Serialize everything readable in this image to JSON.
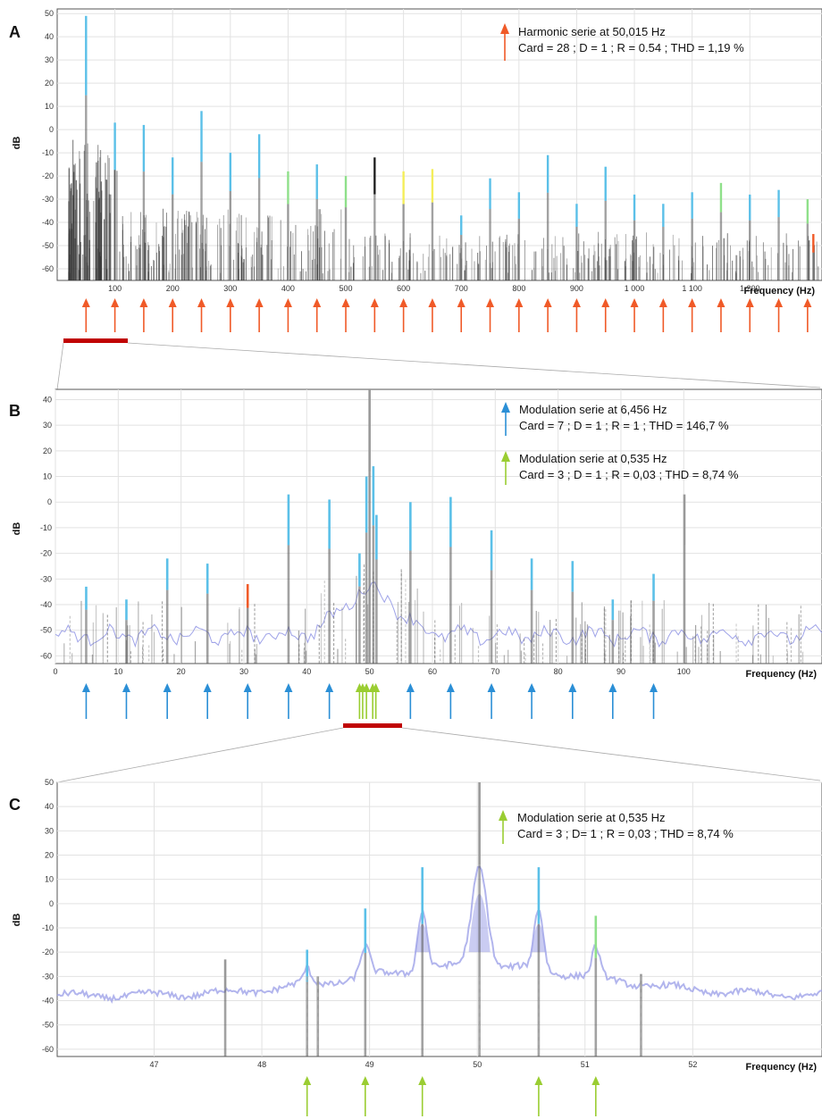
{
  "colors": {
    "harmonic": "#f05a28",
    "modulation_6456": "#2b8fd6",
    "modulation_0535": "#9acd32",
    "peak_blue": "#5bc0e8",
    "peak_green": "#8fe08a",
    "peak_yellow": "#f4ee5a",
    "spectrum": "#9fa3e8",
    "noise": "#333333",
    "zoom_bar": "#c00000"
  },
  "chart_data": [
    {
      "panel": "A",
      "type": "bar",
      "xlabel": "Frequency (Hz)",
      "ylabel": "dB",
      "xlim": [
        0,
        1325
      ],
      "ylim": [
        -65,
        52
      ],
      "xticks": [
        100,
        200,
        300,
        400,
        500,
        600,
        700,
        800,
        900,
        1000,
        1100,
        1200
      ],
      "xtick_labels": [
        "100",
        "200",
        "300",
        "400",
        "500",
        "600",
        "700",
        "800",
        "900",
        "1 000",
        "1 100",
        "1 200"
      ],
      "yticks": [
        -60,
        -50,
        -40,
        -30,
        -20,
        -10,
        0,
        10,
        20,
        30,
        40,
        50
      ],
      "grid": true,
      "legend": [
        {
          "title": "Harmonic serie at 50,015 Hz",
          "stats": "Card = 28 ;  D = 1 ;  R = 0.54 ;  THD = 1,19 %",
          "arrow_color": "#f05a28"
        }
      ],
      "peaks": [
        {
          "x": 50,
          "top": 49,
          "color": "blue"
        },
        {
          "x": 100,
          "top": 3,
          "color": "blue"
        },
        {
          "x": 150,
          "top": 2,
          "color": "blue"
        },
        {
          "x": 200,
          "top": -12,
          "color": "blue"
        },
        {
          "x": 250,
          "top": 8,
          "color": "blue"
        },
        {
          "x": 300,
          "top": -10,
          "color": "blue"
        },
        {
          "x": 350,
          "top": -2,
          "color": "blue"
        },
        {
          "x": 400,
          "top": -18,
          "color": "green"
        },
        {
          "x": 450,
          "top": -15,
          "color": "blue"
        },
        {
          "x": 500,
          "top": -20,
          "color": "green"
        },
        {
          "x": 550,
          "top": -12,
          "color": "dark"
        },
        {
          "x": 600,
          "top": -18,
          "color": "yellow"
        },
        {
          "x": 650,
          "top": -17,
          "color": "yellow"
        },
        {
          "x": 700,
          "top": -37,
          "color": "blue"
        },
        {
          "x": 750,
          "top": -21,
          "color": "blue"
        },
        {
          "x": 800,
          "top": -27,
          "color": "blue"
        },
        {
          "x": 850,
          "top": -11,
          "color": "blue"
        },
        {
          "x": 900,
          "top": -32,
          "color": "blue"
        },
        {
          "x": 950,
          "top": -16,
          "color": "blue"
        },
        {
          "x": 1000,
          "top": -28,
          "color": "blue"
        },
        {
          "x": 1050,
          "top": -32,
          "color": "blue"
        },
        {
          "x": 1100,
          "top": -27,
          "color": "blue"
        },
        {
          "x": 1150,
          "top": -23,
          "color": "green"
        },
        {
          "x": 1200,
          "top": -28,
          "color": "blue"
        },
        {
          "x": 1250,
          "top": -26,
          "color": "blue"
        },
        {
          "x": 1300,
          "top": -30,
          "color": "green"
        },
        {
          "x": 1350,
          "top": -34,
          "color": "green"
        },
        {
          "x": 1310,
          "top": -45,
          "color": "orange"
        }
      ],
      "arrows": [
        50,
        100,
        150,
        200,
        250,
        300,
        350,
        400,
        450,
        500,
        550,
        600,
        650,
        700,
        750,
        800,
        850,
        900,
        950,
        1000,
        1050,
        1100,
        1150,
        1200,
        1250,
        1300,
        1350,
        1400
      ],
      "zoom_range": [
        0,
        105
      ]
    },
    {
      "panel": "B",
      "type": "bar",
      "xlabel": "Frequency (Hz)",
      "ylabel": "dB",
      "xlim": [
        0,
        122
      ],
      "ylim": [
        -63,
        44
      ],
      "xticks": [
        0,
        10,
        20,
        30,
        40,
        50,
        60,
        70,
        80,
        90,
        100
      ],
      "xtick_labels": [
        "0",
        "10",
        "20",
        "30",
        "40",
        "50",
        "60",
        "70",
        "80",
        "90",
        "100"
      ],
      "yticks": [
        -60,
        -50,
        -40,
        -30,
        -20,
        -10,
        0,
        10,
        20,
        30,
        40
      ],
      "grid": true,
      "legend": [
        {
          "title": "Modulation serie at 6,456 Hz",
          "stats": "Card = 7 ;  D = 1 ;  R = 1 ;  THD = 146,7 %",
          "arrow_color": "#2b8fd6"
        },
        {
          "title": "Modulation serie at 0,535 Hz",
          "stats": "Card = 3 ;  D = 1 ;  R = 0,03 ;  THD = 8,74 %",
          "arrow_color": "#9acd32"
        }
      ],
      "peaks": [
        {
          "x": 4.9,
          "top": -33,
          "color": "blue"
        },
        {
          "x": 11.3,
          "top": -38,
          "color": "blue"
        },
        {
          "x": 17.8,
          "top": -22,
          "color": "blue"
        },
        {
          "x": 24.2,
          "top": -24,
          "color": "blue"
        },
        {
          "x": 30.6,
          "top": -32,
          "color": "orange"
        },
        {
          "x": 37.1,
          "top": 3,
          "color": "blue"
        },
        {
          "x": 43.6,
          "top": 1,
          "color": "blue"
        },
        {
          "x": 48.4,
          "top": -20,
          "color": "blue"
        },
        {
          "x": 49.5,
          "top": 10,
          "color": "blue"
        },
        {
          "x": 50.0,
          "top": 44,
          "color": "grey"
        },
        {
          "x": 50.6,
          "top": 14,
          "color": "blue"
        },
        {
          "x": 51.1,
          "top": -5,
          "color": "blue"
        },
        {
          "x": 56.5,
          "top": 0,
          "color": "blue"
        },
        {
          "x": 62.9,
          "top": 2,
          "color": "blue"
        },
        {
          "x": 69.4,
          "top": -11,
          "color": "blue"
        },
        {
          "x": 75.8,
          "top": -22,
          "color": "blue"
        },
        {
          "x": 82.3,
          "top": -23,
          "color": "blue"
        },
        {
          "x": 88.7,
          "top": -38,
          "color": "blue"
        },
        {
          "x": 95.2,
          "top": -28,
          "color": "blue"
        },
        {
          "x": 100.1,
          "top": 3,
          "color": "grey"
        }
      ],
      "arrows_blue": [
        4.9,
        11.3,
        17.8,
        24.2,
        30.6,
        37.1,
        43.6,
        56.5,
        62.9,
        69.4,
        75.8,
        82.3,
        88.7,
        95.2
      ],
      "arrows_green": [
        48.4,
        48.9,
        49.5,
        50.5,
        51.0
      ],
      "zoom_range": [
        46,
        54
      ]
    },
    {
      "panel": "C",
      "type": "bar",
      "xlabel": "Frequency (Hz)",
      "ylabel": "dB",
      "xlim": [
        46.1,
        53.2
      ],
      "ylim": [
        -63,
        50
      ],
      "xticks": [
        47,
        48,
        49,
        50,
        51,
        52
      ],
      "xtick_labels": [
        "47",
        "48",
        "49",
        "50",
        "51",
        "52"
      ],
      "yticks": [
        -60,
        -50,
        -40,
        -30,
        -20,
        -10,
        0,
        10,
        20,
        30,
        40,
        50
      ],
      "grid": true,
      "legend": [
        {
          "title": "Modulation serie at 0,535 Hz",
          "stats": "Card = 3 ;  D= 1 ;  R = 0,03 ; THD = 8,74 %",
          "arrow_color": "#9acd32"
        }
      ],
      "peaks": [
        {
          "x": 47.66,
          "top": -23,
          "color": "grey"
        },
        {
          "x": 48.42,
          "top": -19,
          "color": "blue"
        },
        {
          "x": 48.52,
          "top": -30,
          "color": "grey"
        },
        {
          "x": 48.96,
          "top": -2,
          "color": "blue"
        },
        {
          "x": 49.49,
          "top": 15,
          "color": "blue"
        },
        {
          "x": 50.02,
          "top": 50,
          "color": "grey"
        },
        {
          "x": 50.57,
          "top": 15,
          "color": "blue"
        },
        {
          "x": 51.1,
          "top": -5,
          "color": "green"
        },
        {
          "x": 51.52,
          "top": -29,
          "color": "grey"
        }
      ],
      "arrows_green": [
        48.42,
        48.96,
        49.49,
        50.57,
        51.1
      ]
    }
  ]
}
